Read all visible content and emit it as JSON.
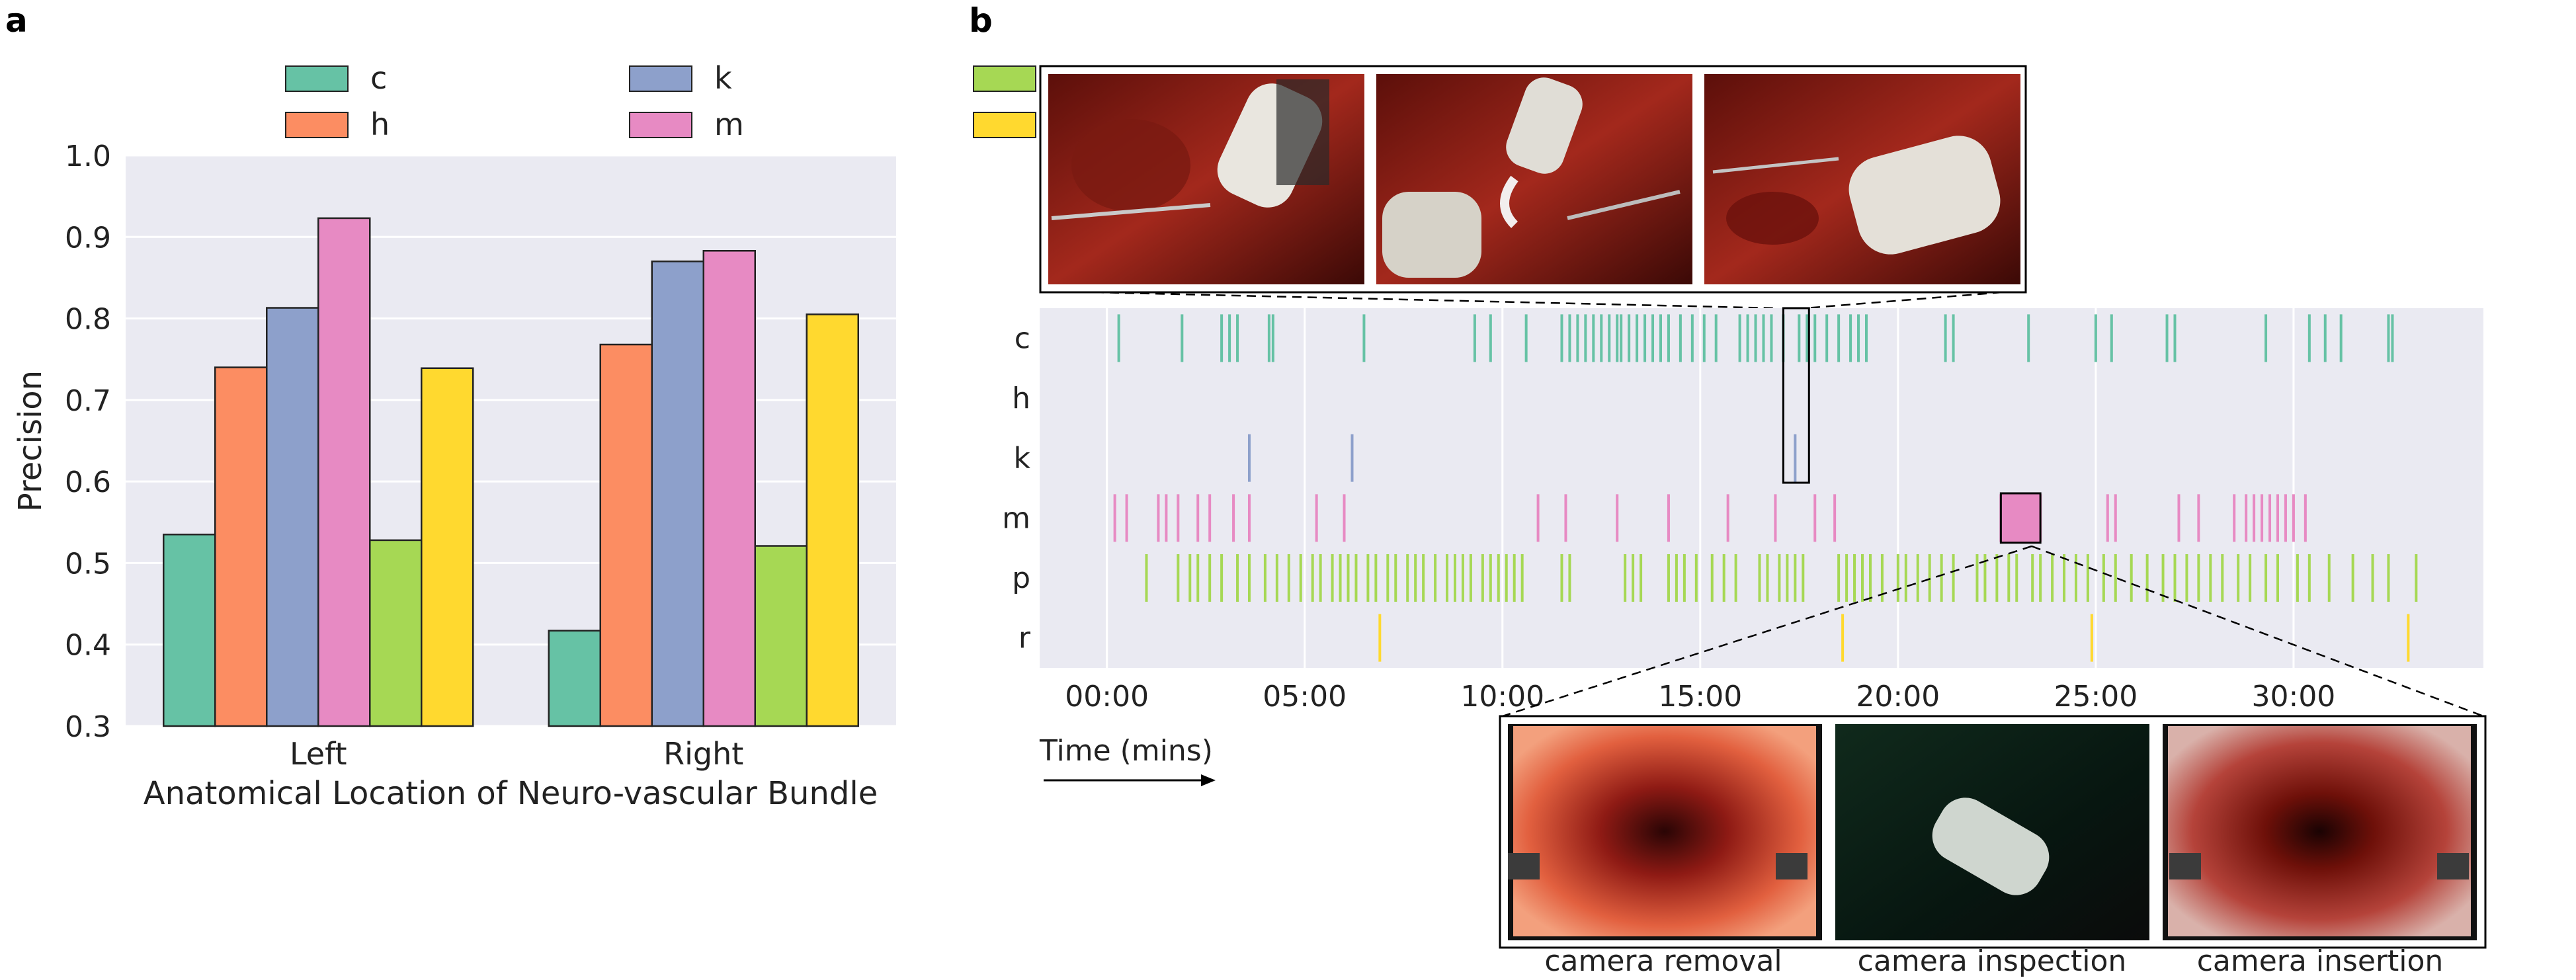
{
  "panels": {
    "a": "a",
    "b": "b"
  },
  "colors": {
    "c": "#66c2a5",
    "h": "#fc8d62",
    "k": "#8da0cb",
    "p": "#a6d854",
    "m": "#e78ac3",
    "r": "#ffd92f",
    "plot_bg": "#eaeaf2",
    "grid": "#ffffff"
  },
  "legend": {
    "labels": [
      "c",
      "h",
      "k",
      "m",
      "p",
      "r"
    ]
  },
  "chart_data": [
    {
      "type": "bar",
      "title": "",
      "xlabel": "Anatomical Location of Neuro-vascular Bundle",
      "ylabel": "Precision",
      "ylim": [
        0.3,
        1.0
      ],
      "yticks": [
        0.3,
        0.4,
        0.5,
        0.6,
        0.7,
        0.8,
        0.9,
        1.0
      ],
      "grid": true,
      "legend_position": "top",
      "categories": [
        "Left",
        "Right"
      ],
      "series": [
        {
          "name": "c",
          "values": [
            0.535,
            0.417
          ]
        },
        {
          "name": "h",
          "values": [
            0.74,
            0.768
          ]
        },
        {
          "name": "k",
          "values": [
            0.813,
            0.87
          ]
        },
        {
          "name": "m",
          "values": [
            0.923,
            0.883
          ]
        },
        {
          "name": "p",
          "values": [
            0.528,
            0.521
          ]
        },
        {
          "name": "r",
          "values": [
            0.739,
            0.805
          ]
        }
      ]
    },
    {
      "type": "event-timeline",
      "xlabel": "Time (mins)",
      "xticks": [
        "00:00",
        "05:00",
        "10:00",
        "15:00",
        "20:00",
        "25:00",
        "30:00"
      ],
      "xtick_values": [
        0,
        5,
        10,
        15,
        20,
        25,
        30
      ],
      "xlim": [
        -1.7,
        34.8
      ],
      "rows": [
        "c",
        "h",
        "k",
        "m",
        "p",
        "r"
      ],
      "events": {
        "c": [
          0.3,
          1.9,
          2.9,
          3.1,
          3.3,
          4.1,
          4.2,
          6.5,
          9.3,
          9.7,
          10.6,
          11.5,
          11.7,
          11.9,
          12.1,
          12.3,
          12.5,
          12.7,
          12.9,
          13.0,
          13.2,
          13.4,
          13.6,
          13.8,
          14.0,
          14.2,
          14.5,
          14.8,
          15.1,
          15.4,
          16.0,
          16.2,
          16.4,
          16.6,
          16.8,
          17.1,
          17.5,
          17.7,
          17.9,
          18.2,
          18.5,
          18.8,
          19.0,
          19.2,
          21.2,
          21.4,
          23.3,
          25.0,
          25.4,
          26.8,
          27.0,
          29.3,
          30.4,
          30.8,
          31.2,
          32.4,
          32.5
        ],
        "h": [],
        "k": [
          3.6,
          6.2,
          17.4
        ],
        "m": [
          0.2,
          0.5,
          1.3,
          1.5,
          1.8,
          2.3,
          2.6,
          3.2,
          3.6,
          5.3,
          6.0,
          10.9,
          11.6,
          12.9,
          14.2,
          15.7,
          16.9,
          17.9,
          18.4,
          22.6,
          22.8,
          23.0,
          23.2,
          23.4,
          23.6,
          25.3,
          25.5,
          27.1,
          27.6,
          28.5,
          28.8,
          29.0,
          29.2,
          29.4,
          29.6,
          29.8,
          30.0,
          30.3
        ],
        "p": [
          1.0,
          1.8,
          2.1,
          2.3,
          2.6,
          2.9,
          3.3,
          3.6,
          4.0,
          4.3,
          4.6,
          4.9,
          5.2,
          5.4,
          5.7,
          5.9,
          6.1,
          6.3,
          6.6,
          6.8,
          7.1,
          7.3,
          7.6,
          7.8,
          8.0,
          8.3,
          8.6,
          8.8,
          9.0,
          9.2,
          9.5,
          9.7,
          9.9,
          10.1,
          10.3,
          10.5,
          11.5,
          11.7,
          13.1,
          13.3,
          13.5,
          14.2,
          14.4,
          14.6,
          14.9,
          15.3,
          15.6,
          15.9,
          16.5,
          16.7,
          17.0,
          17.2,
          17.4,
          17.6,
          18.5,
          18.7,
          18.9,
          19.1,
          19.3,
          19.6,
          20.0,
          20.2,
          20.5,
          20.8,
          21.1,
          21.4,
          22.0,
          22.2,
          22.5,
          22.8,
          23.0,
          23.4,
          23.6,
          23.9,
          24.2,
          24.5,
          24.8,
          25.2,
          25.5,
          25.9,
          26.3,
          26.7,
          27.0,
          27.3,
          27.6,
          27.9,
          28.2,
          28.6,
          28.9,
          29.3,
          29.6,
          30.1,
          30.4,
          30.9,
          31.5,
          32.0,
          32.4,
          33.1
        ],
        "r": [
          6.9,
          18.6,
          24.9,
          32.9
        ]
      },
      "highlight_boxes": [
        {
          "from": 17.1,
          "to": 17.75,
          "rows": [
            "c",
            "h",
            "k"
          ]
        },
        {
          "from": 22.6,
          "to": 23.6,
          "rows": [
            "m"
          ]
        }
      ]
    }
  ],
  "insets": {
    "top": {
      "thumbnails": [
        "surgical-frame-1",
        "surgical-frame-2",
        "surgical-frame-3"
      ]
    },
    "bottom": {
      "captions": [
        "camera removal",
        "camera inspection",
        "camera insertion"
      ]
    }
  }
}
